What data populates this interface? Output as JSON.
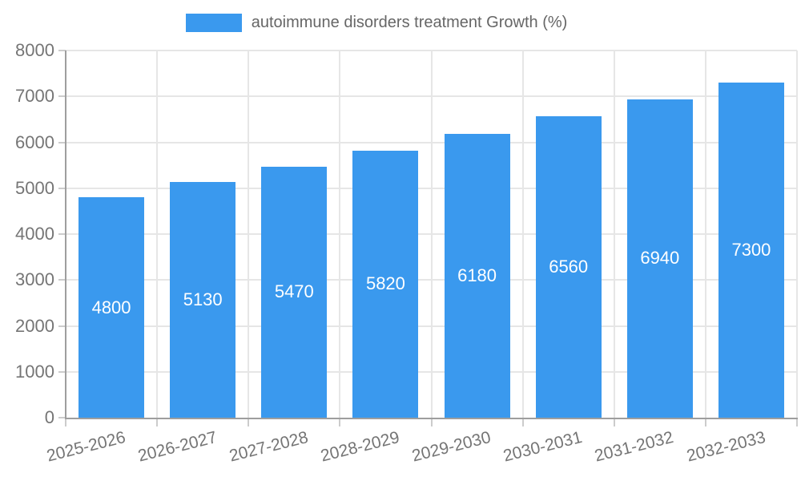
{
  "legend": {
    "label": "autoimmune disorders treatment Growth (%)",
    "swatch_color": "#3a99ee",
    "position": "top"
  },
  "chart_data": {
    "type": "bar",
    "title": "autoimmune disorders treatment Growth (%)",
    "categories": [
      "2025-2026",
      "2026-2027",
      "2027-2028",
      "2028-2029",
      "2029-2030",
      "2030-2031",
      "2031-2032",
      "2032-2033"
    ],
    "values": [
      4800,
      5130,
      5470,
      5820,
      6180,
      6560,
      6940,
      7300
    ],
    "series": [
      {
        "name": "autoimmune disorders treatment Growth (%)",
        "values": [
          4800,
          5130,
          5470,
          5820,
          6180,
          6560,
          6940,
          7300
        ]
      }
    ],
    "xlabel": "",
    "ylabel": "",
    "ylim": [
      0,
      8000
    ],
    "y_tick_step": 1000,
    "y_ticks": [
      0,
      1000,
      2000,
      3000,
      4000,
      5000,
      6000,
      7000,
      8000
    ],
    "grid": true,
    "legend_position": "top",
    "bar_color": "#3a99ee",
    "value_label_color": "#ffffff",
    "axis_label_color": "#757575",
    "grid_color": "#e6e6e6",
    "axis_line_color": "#9e9e9e",
    "value_labels_shown_inside_bars": true
  }
}
